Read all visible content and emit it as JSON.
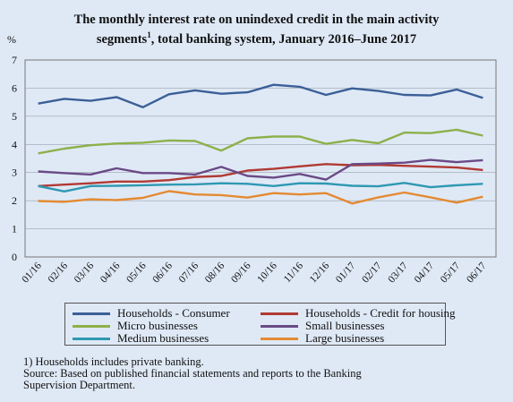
{
  "chart_data": {
    "type": "line",
    "title_line1": "The monthly interest rate on unindexed credit in the main activity",
    "title_line2_main": "segments",
    "title_line2_sup": "1",
    "title_line2_rest": ", total banking system, January 2016–June 2017",
    "ylabel": "%",
    "ylim": [
      0,
      7
    ],
    "yticks": [
      "0",
      "1",
      "2",
      "3",
      "4",
      "5",
      "6",
      "7"
    ],
    "grid": true,
    "legend_position": "bottom",
    "categories": [
      "01/16",
      "02/16",
      "03/16",
      "04/16",
      "05/16",
      "06/16",
      "07/16",
      "08/16",
      "09/16",
      "10/16",
      "11/16",
      "12/16",
      "01/17",
      "02/17",
      "03/17",
      "04/17",
      "05/17",
      "06/17"
    ],
    "series": [
      {
        "name": "Households - Consumer",
        "color": "#3b5f97",
        "values": [
          5.45,
          5.62,
          5.55,
          5.68,
          5.32,
          5.78,
          5.92,
          5.8,
          5.85,
          6.12,
          6.05,
          5.76,
          5.99,
          5.9,
          5.76,
          5.74,
          5.95,
          5.65
        ]
      },
      {
        "name": "Households - Credit for housing",
        "color": "#b03a33",
        "values": [
          2.52,
          2.57,
          2.62,
          2.68,
          2.68,
          2.73,
          2.84,
          2.88,
          3.07,
          3.13,
          3.22,
          3.3,
          3.26,
          3.27,
          3.24,
          3.21,
          3.18,
          3.09
        ]
      },
      {
        "name": "Micro businesses",
        "color": "#8db04a",
        "values": [
          3.68,
          3.85,
          3.97,
          4.03,
          4.06,
          4.14,
          4.12,
          3.78,
          4.22,
          4.28,
          4.28,
          4.02,
          4.16,
          4.04,
          4.42,
          4.4,
          4.52,
          4.31
        ]
      },
      {
        "name": "Small businesses",
        "color": "#6a4a86",
        "values": [
          3.04,
          2.98,
          2.93,
          3.15,
          2.98,
          2.98,
          2.93,
          3.2,
          2.88,
          2.82,
          2.95,
          2.75,
          3.3,
          3.32,
          3.35,
          3.45,
          3.37,
          3.44
        ]
      },
      {
        "name": "Medium businesses",
        "color": "#2f98b2",
        "values": [
          2.52,
          2.33,
          2.52,
          2.53,
          2.55,
          2.57,
          2.58,
          2.62,
          2.6,
          2.52,
          2.62,
          2.61,
          2.53,
          2.51,
          2.63,
          2.48,
          2.55,
          2.6
        ]
      },
      {
        "name": "Large businesses",
        "color": "#e48a32",
        "values": [
          1.99,
          1.96,
          2.05,
          2.02,
          2.1,
          2.34,
          2.22,
          2.2,
          2.11,
          2.27,
          2.22,
          2.27,
          1.9,
          2.12,
          2.29,
          2.12,
          1.93,
          2.14
        ]
      }
    ]
  },
  "notes": {
    "footnote_sup": "1)",
    "footnote_text": " Households includes private banking.",
    "source_line1": "Source:  Based on published financial statements and reports to the Banking",
    "source_line2": "Supervision Department."
  }
}
